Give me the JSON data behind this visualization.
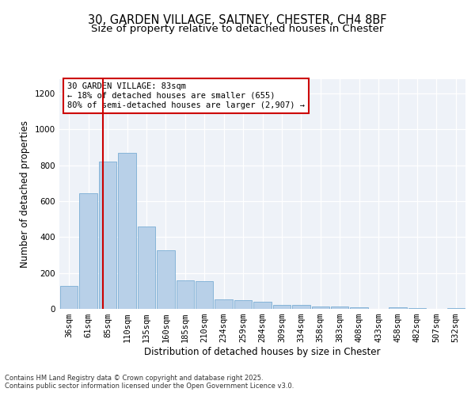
{
  "title_line1": "30, GARDEN VILLAGE, SALTNEY, CHESTER, CH4 8BF",
  "title_line2": "Size of property relative to detached houses in Chester",
  "xlabel": "Distribution of detached houses by size in Chester",
  "ylabel": "Number of detached properties",
  "categories": [
    "36sqm",
    "61sqm",
    "85sqm",
    "110sqm",
    "135sqm",
    "160sqm",
    "185sqm",
    "210sqm",
    "234sqm",
    "259sqm",
    "284sqm",
    "309sqm",
    "334sqm",
    "358sqm",
    "383sqm",
    "408sqm",
    "433sqm",
    "458sqm",
    "482sqm",
    "507sqm",
    "532sqm"
  ],
  "values": [
    130,
    645,
    820,
    870,
    460,
    325,
    160,
    155,
    55,
    50,
    38,
    20,
    20,
    15,
    15,
    8,
    0,
    10,
    5,
    0,
    5
  ],
  "bar_color": "#b8d0e8",
  "bar_edge_color": "#7aadd4",
  "vline_color": "#cc0000",
  "vline_pos": 1.75,
  "annotation_title": "30 GARDEN VILLAGE: 83sqm",
  "annotation_line2": "← 18% of detached houses are smaller (655)",
  "annotation_line3": "80% of semi-detached houses are larger (2,907) →",
  "annotation_box_color": "#cc0000",
  "ylim": [
    0,
    1280
  ],
  "yticks": [
    0,
    200,
    400,
    600,
    800,
    1000,
    1200
  ],
  "background_color": "#eef2f8",
  "footer_line1": "Contains HM Land Registry data © Crown copyright and database right 2025.",
  "footer_line2": "Contains public sector information licensed under the Open Government Licence v3.0.",
  "title_fontsize": 10.5,
  "subtitle_fontsize": 9.5,
  "axis_label_fontsize": 8.5,
  "tick_fontsize": 7.5,
  "annotation_fontsize": 7.5,
  "footer_fontsize": 6.0
}
